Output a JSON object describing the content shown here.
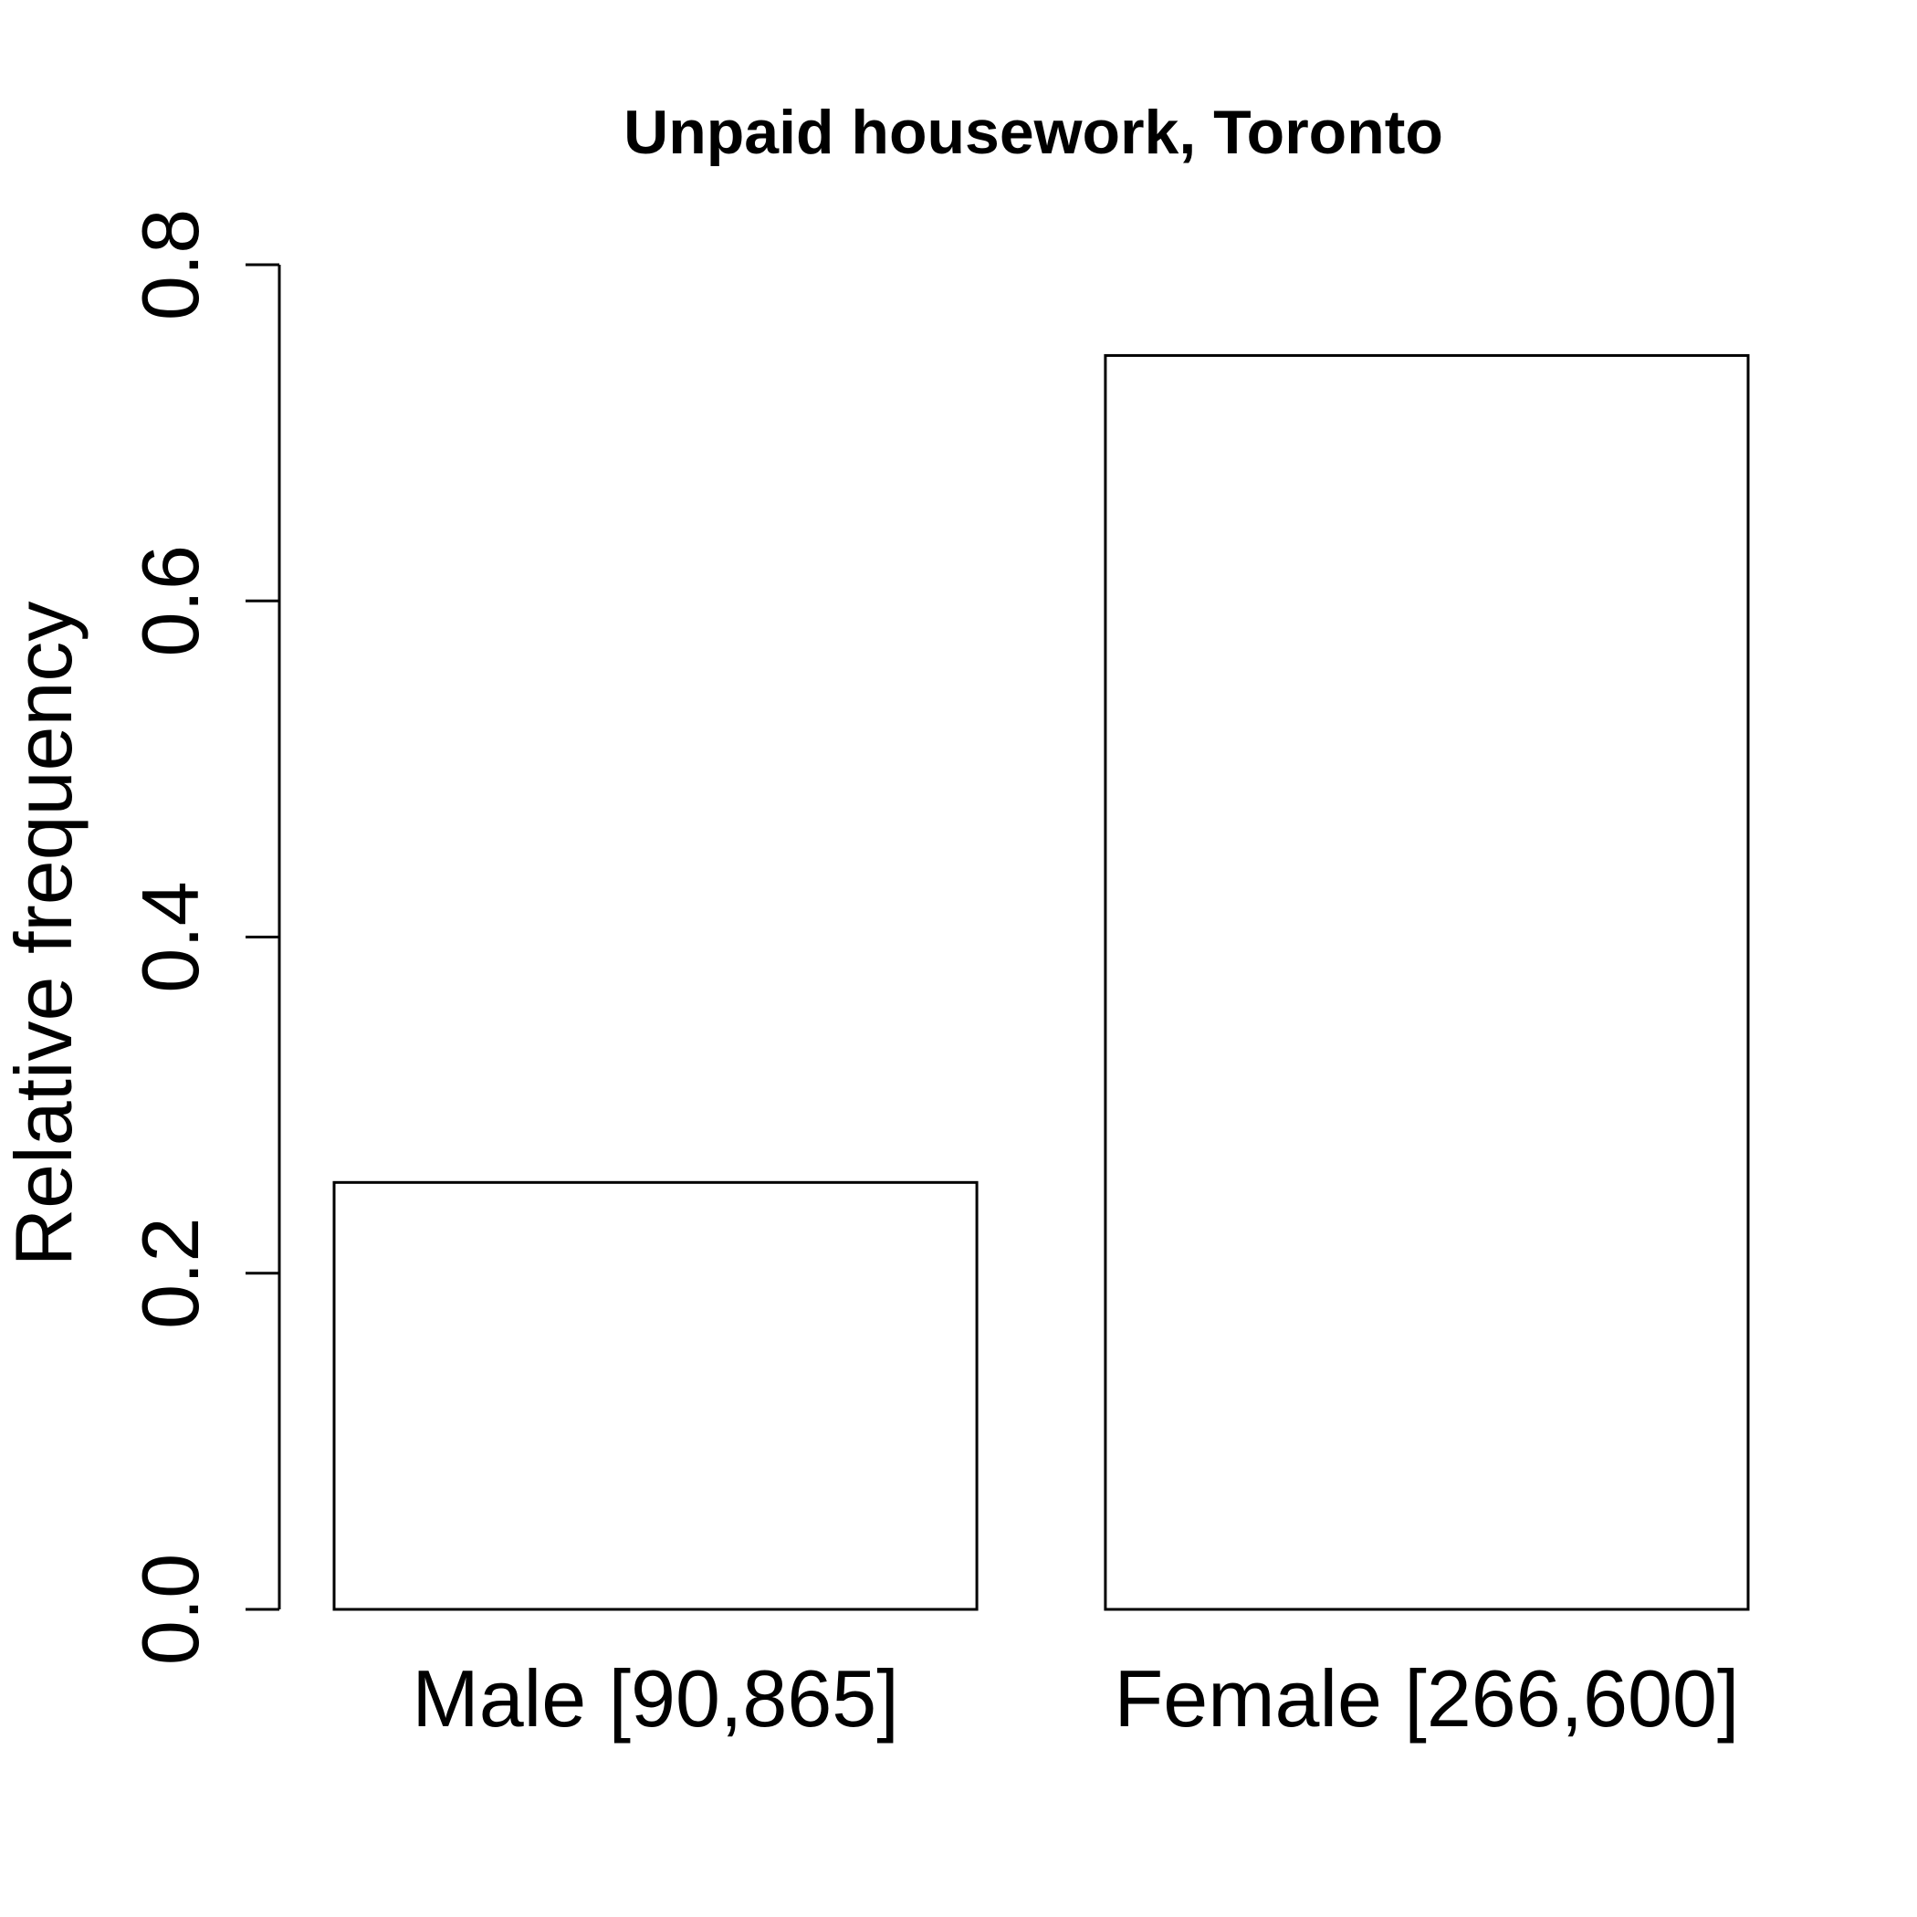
{
  "chart_data": {
    "type": "bar",
    "title": "Unpaid housework, Toronto",
    "xlabel": "",
    "ylabel": "Relative frequency",
    "categories": [
      "Male [90,865]",
      "Female [266,600]"
    ],
    "values": [
      0.254,
      0.746
    ],
    "ylim": [
      0,
      0.8
    ],
    "yticks": [
      "0.0",
      "0.2",
      "0.4",
      "0.6",
      "0.8"
    ],
    "grid": false,
    "colors": {
      "bar_fill": "#ffffff",
      "bar_stroke": "#000000"
    }
  }
}
